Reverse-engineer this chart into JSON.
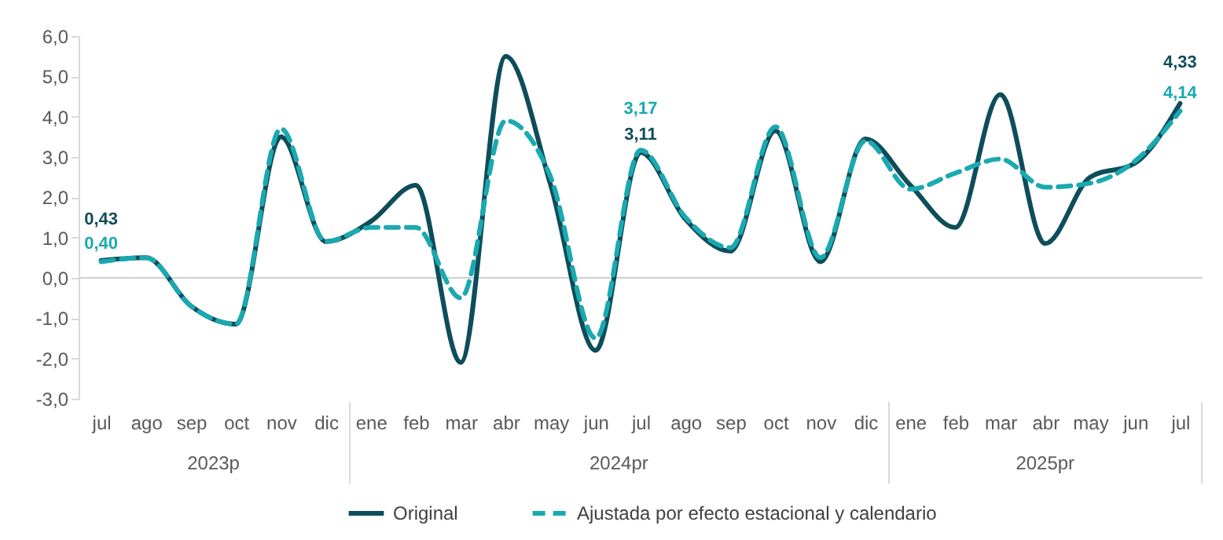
{
  "chart_data": {
    "type": "line",
    "categories": [
      "jul",
      "ago",
      "sep",
      "oct",
      "nov",
      "dic",
      "ene",
      "feb",
      "mar",
      "abr",
      "may",
      "jun",
      "jul",
      "ago",
      "sep",
      "oct",
      "nov",
      "dic",
      "ene",
      "feb",
      "mar",
      "abr",
      "may",
      "jun",
      "jul"
    ],
    "series": [
      {
        "name": "Original",
        "color": "#0e4d5a",
        "line_style": "solid",
        "values": [
          0.43,
          0.5,
          -0.7,
          -1.15,
          3.5,
          0.9,
          1.4,
          2.3,
          -2.1,
          5.5,
          2.3,
          -1.8,
          3.11,
          1.45,
          0.66,
          3.65,
          0.4,
          3.45,
          2.3,
          1.25,
          4.55,
          0.85,
          2.5,
          2.85,
          4.33
        ],
        "value_labels": [
          "0,43",
          null,
          null,
          null,
          null,
          null,
          null,
          null,
          null,
          null,
          null,
          null,
          "3,11",
          null,
          null,
          null,
          null,
          null,
          null,
          null,
          null,
          null,
          null,
          null,
          "4,33"
        ]
      },
      {
        "name": "Ajustada por efecto estacional y calendario",
        "color": "#1aa9b0",
        "line_style": "dashed",
        "values": [
          0.4,
          0.5,
          -0.7,
          -1.15,
          3.7,
          0.9,
          1.25,
          1.25,
          -0.5,
          3.9,
          2.5,
          -1.5,
          3.17,
          1.5,
          0.75,
          3.75,
          0.5,
          3.4,
          2.2,
          2.6,
          2.95,
          2.25,
          2.35,
          2.9,
          4.14
        ],
        "value_labels": [
          "0,40",
          null,
          null,
          null,
          null,
          null,
          null,
          null,
          null,
          null,
          null,
          null,
          "3,17",
          null,
          null,
          null,
          null,
          null,
          null,
          null,
          null,
          null,
          null,
          null,
          "4,14"
        ]
      }
    ],
    "ylim": [
      -3,
      6
    ],
    "yticks": [
      {
        "value": -3,
        "label": "-3,0"
      },
      {
        "value": -2,
        "label": "-2,0"
      },
      {
        "value": -1,
        "label": "-1,0"
      },
      {
        "value": 0,
        "label": "0,0"
      },
      {
        "value": 1,
        "label": "1,0"
      },
      {
        "value": 2,
        "label": "2,0"
      },
      {
        "value": 3,
        "label": "3,0"
      },
      {
        "value": 4,
        "label": "4,0"
      },
      {
        "value": 5,
        "label": "5,0"
      },
      {
        "value": 6,
        "label": "6,0"
      }
    ],
    "ref_lines": [
      {
        "axis": "y",
        "value": 0,
        "color": "#d0d0d0"
      }
    ],
    "annotations": [
      "2023p",
      "2024pr",
      "2025pr"
    ],
    "grid": false,
    "legend": "bottom"
  }
}
